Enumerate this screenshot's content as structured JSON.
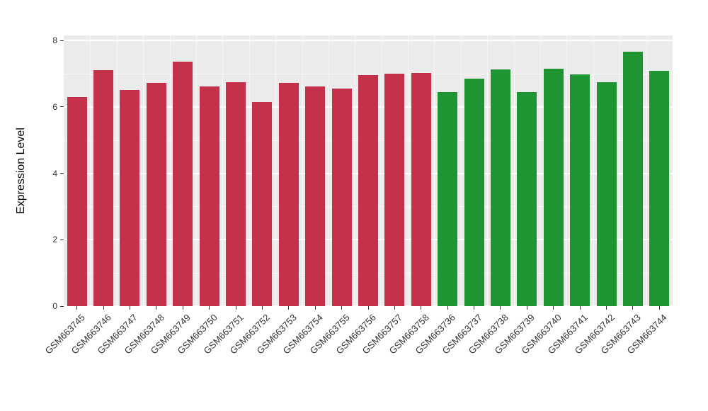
{
  "chart_data": {
    "type": "bar",
    "title": "",
    "xlabel": "",
    "ylabel": "Expression Level",
    "ylim": [
      0,
      8
    ],
    "yticks": [
      "0",
      "2",
      "4",
      "6",
      "8"
    ],
    "grid": true,
    "legend": "none",
    "panel_background": "#EBEBEB",
    "grid_color": "#FFFFFF",
    "bar_color_red": "#C5314B",
    "bar_color_green": "#1F9433",
    "categories": [
      "GSM663745",
      "GSM663746",
      "GSM663747",
      "GSM663748",
      "GSM663749",
      "GSM663750",
      "GSM663751",
      "GSM663752",
      "GSM663753",
      "GSM663754",
      "GSM663755",
      "GSM663756",
      "GSM663757",
      "GSM663758",
      "GSM663736",
      "GSM663737",
      "GSM663738",
      "GSM663739",
      "GSM663740",
      "GSM663741",
      "GSM663742",
      "GSM663743",
      "GSM663744"
    ],
    "values": [
      6.3,
      7.1,
      6.5,
      6.72,
      7.35,
      6.62,
      6.75,
      6.15,
      6.72,
      6.62,
      6.55,
      6.95,
      7.0,
      7.02,
      6.45,
      6.85,
      7.12,
      6.45,
      7.15,
      6.97,
      6.75,
      7.65,
      7.08
    ],
    "groups": [
      "red",
      "red",
      "red",
      "red",
      "red",
      "red",
      "red",
      "red",
      "red",
      "red",
      "red",
      "red",
      "red",
      "red",
      "green",
      "green",
      "green",
      "green",
      "green",
      "green",
      "green",
      "green",
      "green"
    ]
  }
}
